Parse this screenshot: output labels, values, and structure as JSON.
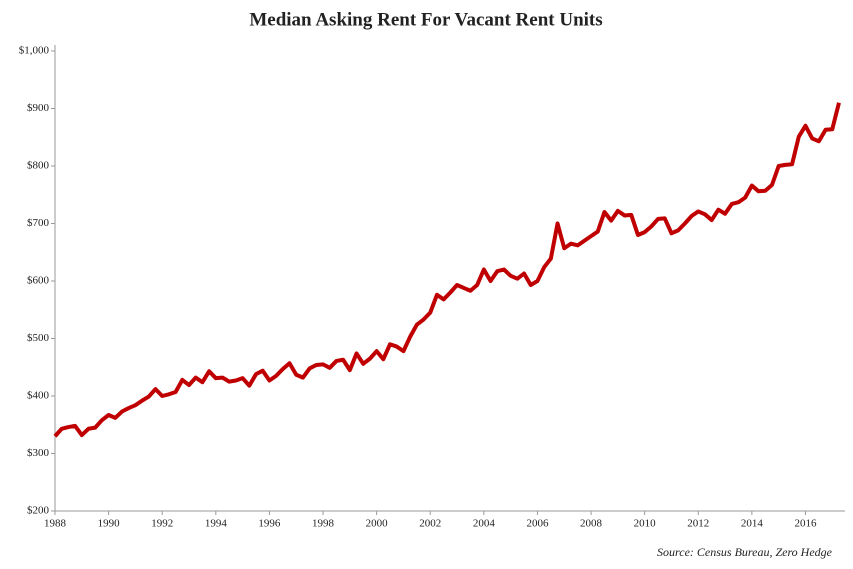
{
  "chart_data": {
    "type": "line",
    "title": "Median Asking Rent For Vacant Rent Units",
    "source": "Source: Census Bureau, Zero Hedge",
    "x": [
      1988,
      1988.25,
      1988.5,
      1988.75,
      1989,
      1989.25,
      1989.5,
      1989.75,
      1990,
      1990.25,
      1990.5,
      1990.75,
      1991,
      1991.25,
      1991.5,
      1991.75,
      1992,
      1992.25,
      1992.5,
      1992.75,
      1993,
      1993.25,
      1993.5,
      1993.75,
      1994,
      1994.25,
      1994.5,
      1994.75,
      1995,
      1995.25,
      1995.5,
      1995.75,
      1996,
      1996.25,
      1996.5,
      1996.75,
      1997,
      1997.25,
      1997.5,
      1997.75,
      1998,
      1998.25,
      1998.5,
      1998.75,
      1999,
      1999.25,
      1999.5,
      1999.75,
      2000,
      2000.25,
      2000.5,
      2000.75,
      2001,
      2001.25,
      2001.5,
      2001.75,
      2002,
      2002.25,
      2002.5,
      2002.75,
      2003,
      2003.25,
      2003.5,
      2003.75,
      2004,
      2004.25,
      2004.5,
      2004.75,
      2005,
      2005.25,
      2005.5,
      2005.75,
      2006,
      2006.25,
      2006.5,
      2006.75,
      2007,
      2007.25,
      2007.5,
      2007.75,
      2008,
      2008.25,
      2008.5,
      2008.75,
      2009,
      2009.25,
      2009.5,
      2009.75,
      2010,
      2010.25,
      2010.5,
      2010.75,
      2011,
      2011.25,
      2011.5,
      2011.75,
      2012,
      2012.25,
      2012.5,
      2012.75,
      2013,
      2013.25,
      2013.5,
      2013.75,
      2014,
      2014.25,
      2014.5,
      2014.75,
      2015,
      2015.25,
      2015.5,
      2015.75,
      2016,
      2016.25,
      2016.5,
      2016.75,
      2017,
      2017.25
    ],
    "series": [
      {
        "color": "#c00000",
        "values": [
          330,
          343,
          346,
          348,
          332,
          343,
          345,
          358,
          367,
          362,
          373,
          379,
          384,
          392,
          399,
          412,
          400,
          403,
          407,
          428,
          419,
          432,
          424,
          443,
          431,
          432,
          425,
          427,
          431,
          418,
          438,
          444,
          427,
          435,
          447,
          457,
          437,
          432,
          448,
          454,
          455,
          449,
          461,
          463,
          445,
          474,
          456,
          465,
          478,
          464,
          490,
          486,
          478,
          503,
          524,
          533,
          545,
          576,
          568,
          580,
          593,
          588,
          583,
          593,
          620,
          600,
          617,
          620,
          609,
          604,
          613,
          593,
          600,
          624,
          639,
          700,
          657,
          665,
          662,
          670,
          678,
          686,
          720,
          705,
          722,
          714,
          715,
          680,
          685,
          695,
          708,
          709,
          683,
          688,
          700,
          713,
          721,
          716,
          706,
          724,
          717,
          734,
          737,
          745,
          766,
          756,
          757,
          767,
          800,
          802,
          803,
          851,
          870,
          848,
          843,
          863,
          864,
          910
        ]
      }
    ],
    "xlim": [
      1988,
      2017.4
    ],
    "xticks": [
      1988,
      1990,
      1992,
      1994,
      1996,
      1998,
      2000,
      2002,
      2004,
      2006,
      2008,
      2010,
      2012,
      2014,
      2016
    ],
    "ylim": [
      200,
      1000
    ],
    "yticks": [
      {
        "value": 200,
        "label": "$200"
      },
      {
        "value": 300,
        "label": "$300"
      },
      {
        "value": 400,
        "label": "$400"
      },
      {
        "value": 500,
        "label": "$500"
      },
      {
        "value": 600,
        "label": "$600"
      },
      {
        "value": 700,
        "label": "$700"
      },
      {
        "value": 800,
        "label": "$800"
      },
      {
        "value": 900,
        "label": "$900"
      },
      {
        "value": 1000,
        "label": "$1,000"
      }
    ],
    "grid": false
  }
}
